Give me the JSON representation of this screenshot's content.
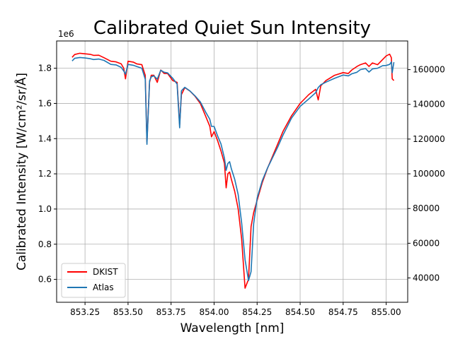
{
  "chart_data": {
    "type": "line",
    "title": "Calibrated Quiet Sun Intensity",
    "xlabel": "Wavelength [nm]",
    "ylabel_left": "Calibrated Intensity [W/cm²/sr/Å]",
    "left_offset_label": "1e6",
    "xlim": [
      853.085,
      855.125
    ],
    "ylim_left": [
      0.47,
      1.955
    ],
    "ylim_right": [
      26000,
      176500
    ],
    "x_ticks": [
      853.25,
      853.5,
      853.75,
      854.0,
      854.25,
      854.5,
      854.75,
      855.0
    ],
    "x_tick_labels": [
      "853.25",
      "853.50",
      "853.75",
      "854.00",
      "854.25",
      "854.50",
      "854.75",
      "855.00"
    ],
    "y_left_ticks": [
      0.6,
      0.8,
      1.0,
      1.2,
      1.4,
      1.6,
      1.8
    ],
    "y_left_tick_labels": [
      "0.6",
      "0.8",
      "1.0",
      "1.2",
      "1.4",
      "1.6",
      "1.8"
    ],
    "y_right_ticks": [
      40000,
      60000,
      80000,
      100000,
      120000,
      140000,
      160000
    ],
    "y_right_tick_labels": [
      "40000",
      "60000",
      "80000",
      "100000",
      "120000",
      "140000",
      "160000"
    ],
    "grid": true,
    "legend_position": "lower-left",
    "series": [
      {
        "name": "DKIST",
        "color": "#ff0000",
        "axis": "left",
        "x": [
          853.175,
          853.19,
          853.22,
          853.25,
          853.28,
          853.3,
          853.33,
          853.36,
          853.4,
          853.43,
          853.46,
          853.475,
          853.485,
          853.5,
          853.53,
          853.55,
          853.58,
          853.6,
          853.61,
          853.625,
          853.635,
          853.65,
          853.67,
          853.69,
          853.71,
          853.73,
          853.76,
          853.785,
          853.8,
          853.81,
          853.83,
          853.86,
          853.89,
          853.92,
          853.95,
          853.975,
          853.985,
          854.0,
          854.02,
          854.04,
          854.06,
          854.07,
          854.08,
          854.09,
          854.1,
          854.12,
          854.14,
          854.16,
          854.18,
          854.2,
          854.215,
          854.23,
          854.25,
          854.28,
          854.31,
          854.34,
          854.37,
          854.4,
          854.45,
          854.5,
          854.55,
          854.59,
          854.605,
          854.62,
          854.65,
          854.7,
          854.75,
          854.78,
          854.8,
          854.83,
          854.85,
          854.88,
          854.9,
          854.92,
          854.95,
          854.98,
          855.0,
          855.02,
          855.03,
          855.035,
          855.045
        ],
        "y": [
          1.862,
          1.878,
          1.885,
          1.882,
          1.879,
          1.873,
          1.874,
          1.86,
          1.84,
          1.836,
          1.825,
          1.8,
          1.74,
          1.84,
          1.835,
          1.825,
          1.82,
          1.76,
          1.38,
          1.72,
          1.76,
          1.76,
          1.72,
          1.79,
          1.77,
          1.77,
          1.73,
          1.72,
          1.48,
          1.65,
          1.69,
          1.67,
          1.64,
          1.6,
          1.53,
          1.47,
          1.41,
          1.44,
          1.39,
          1.33,
          1.26,
          1.12,
          1.2,
          1.21,
          1.17,
          1.1,
          1.0,
          0.83,
          0.55,
          0.6,
          0.9,
          0.98,
          1.05,
          1.15,
          1.23,
          1.3,
          1.37,
          1.44,
          1.53,
          1.6,
          1.65,
          1.68,
          1.62,
          1.7,
          1.73,
          1.76,
          1.775,
          1.77,
          1.79,
          1.81,
          1.82,
          1.83,
          1.81,
          1.83,
          1.82,
          1.85,
          1.87,
          1.88,
          1.86,
          1.74,
          1.73
        ]
      },
      {
        "name": "Atlas",
        "color": "#1f77b4",
        "axis": "right",
        "x": [
          853.175,
          853.19,
          853.22,
          853.25,
          853.28,
          853.3,
          853.33,
          853.36,
          853.4,
          853.43,
          853.46,
          853.475,
          853.485,
          853.5,
          853.53,
          853.55,
          853.58,
          853.6,
          853.61,
          853.625,
          853.635,
          853.65,
          853.67,
          853.69,
          853.71,
          853.73,
          853.76,
          853.785,
          853.8,
          853.81,
          853.83,
          853.86,
          853.89,
          853.92,
          853.95,
          853.975,
          853.985,
          854.0,
          854.02,
          854.04,
          854.06,
          854.07,
          854.08,
          854.09,
          854.1,
          854.12,
          854.14,
          854.16,
          854.18,
          854.2,
          854.215,
          854.23,
          854.25,
          854.28,
          854.31,
          854.34,
          854.37,
          854.4,
          854.45,
          854.5,
          854.55,
          854.59,
          854.605,
          854.62,
          854.65,
          854.7,
          854.75,
          854.78,
          854.8,
          854.83,
          854.85,
          854.88,
          854.9,
          854.92,
          854.95,
          854.98,
          855.0,
          855.02,
          855.03,
          855.035,
          855.045
        ],
        "y": [
          165000,
          166500,
          167000,
          166700,
          166300,
          165800,
          166100,
          165300,
          163000,
          162700,
          161300,
          159200,
          157400,
          163000,
          162500,
          161800,
          160800,
          154500,
          117000,
          153500,
          155800,
          156400,
          154500,
          159600,
          158500,
          158100,
          155000,
          151700,
          126500,
          147800,
          149800,
          147700,
          144800,
          141400,
          135700,
          131400,
          127300,
          127300,
          121900,
          117200,
          109000,
          102000,
          105900,
          107000,
          103000,
          96800,
          88000,
          71700,
          50600,
          38500,
          43600,
          71300,
          86000,
          96000,
          103200,
          109300,
          115400,
          122200,
          132100,
          138800,
          143100,
          146700,
          149700,
          151300,
          152800,
          155000,
          156900,
          156400,
          157600,
          158500,
          160000,
          160600,
          158600,
          160400,
          160800,
          162300,
          162400,
          163000,
          164400,
          158200,
          164300
        ]
      }
    ]
  }
}
